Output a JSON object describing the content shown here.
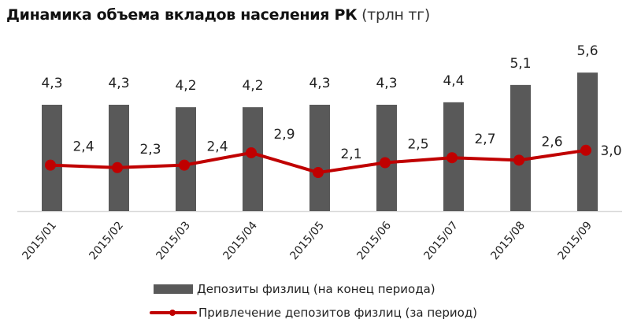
{
  "title": {
    "main": "Динамика объема вкладов населения РК",
    "unit": "(трлн тг)"
  },
  "legend": {
    "bars": "Депозиты физлиц (на конец периода)",
    "line": "Привлечение депозитов физлиц (за период)"
  },
  "colors": {
    "bars": "#595959",
    "line": "#c00000",
    "axis": "#d9d9d9"
  },
  "chart_data": {
    "type": "bar+line",
    "title": "Динамика объема вкладов населения РК (трлн тг)",
    "xlabel": "",
    "ylabel": "",
    "grid": false,
    "legend_position": "bottom",
    "categories": [
      "2015/01",
      "2015/02",
      "2015/03",
      "2015/04",
      "2015/05",
      "2015/06",
      "2015/07",
      "2015/08",
      "2015/09"
    ],
    "series": [
      {
        "name": "Депозиты физлиц (на конец периода)",
        "type": "bar",
        "values": [
          4.3,
          4.3,
          4.2,
          4.2,
          4.3,
          4.3,
          4.4,
          5.1,
          5.6
        ],
        "labels": [
          "4,3",
          "4,3",
          "4,2",
          "4,2",
          "4,3",
          "4,3",
          "4,4",
          "5,1",
          "5,6"
        ]
      },
      {
        "name": "Привлечение депозитов физлиц (за период)",
        "type": "line",
        "values": [
          2.4,
          2.3,
          2.4,
          2.9,
          2.1,
          2.5,
          2.7,
          2.6,
          3.0
        ],
        "labels": [
          "2,4",
          "2,3",
          "2,4",
          "2,9",
          "2,1",
          "2,5",
          "2,7",
          "2,6",
          "3,0"
        ]
      }
    ]
  }
}
